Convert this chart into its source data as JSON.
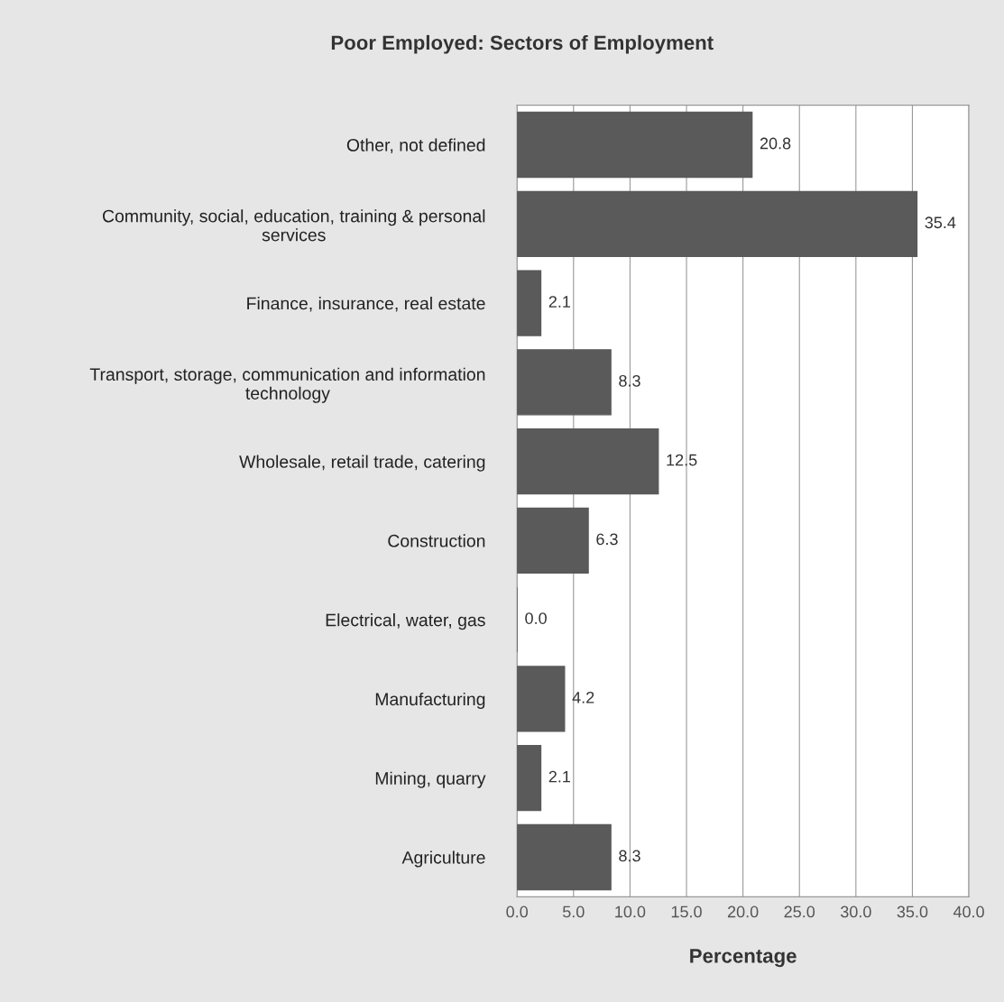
{
  "chart_data": {
    "type": "bar",
    "orientation": "horizontal",
    "title": "Poor Employed: Sectors of Employment",
    "xlabel": "Percentage",
    "categories": [
      "Other, not defined",
      "Community, social, education, training & personal\nservices",
      "Finance, insurance, real estate",
      "Transport, storage, communication and information\ntechnology",
      "Wholesale, retail trade, catering",
      "Construction",
      "Electrical, water, gas",
      "Manufacturing",
      "Mining, quarry",
      "Agriculture"
    ],
    "values": [
      20.8,
      35.4,
      2.1,
      8.3,
      12.5,
      6.3,
      0.0,
      4.2,
      2.1,
      8.3
    ],
    "value_labels": [
      "20.8",
      "35.4",
      "2.1",
      "8.3",
      "12.5",
      "6.3",
      "0.0",
      "4.2",
      "2.1",
      "8.3"
    ],
    "color": "#5a5a5a",
    "xlim": [
      0,
      40
    ],
    "xticks": [
      {
        "value": 0,
        "label": "0.0"
      },
      {
        "value": 5,
        "label": "5.0"
      },
      {
        "value": 10,
        "label": "10.0"
      },
      {
        "value": 15,
        "label": "15.0"
      },
      {
        "value": 20,
        "label": "20.0"
      },
      {
        "value": 25,
        "label": "25.0"
      },
      {
        "value": 30,
        "label": "30.0"
      },
      {
        "value": 35,
        "label": "35.0"
      },
      {
        "value": 40,
        "label": "40.0"
      }
    ],
    "grid": "x",
    "legend": false
  }
}
